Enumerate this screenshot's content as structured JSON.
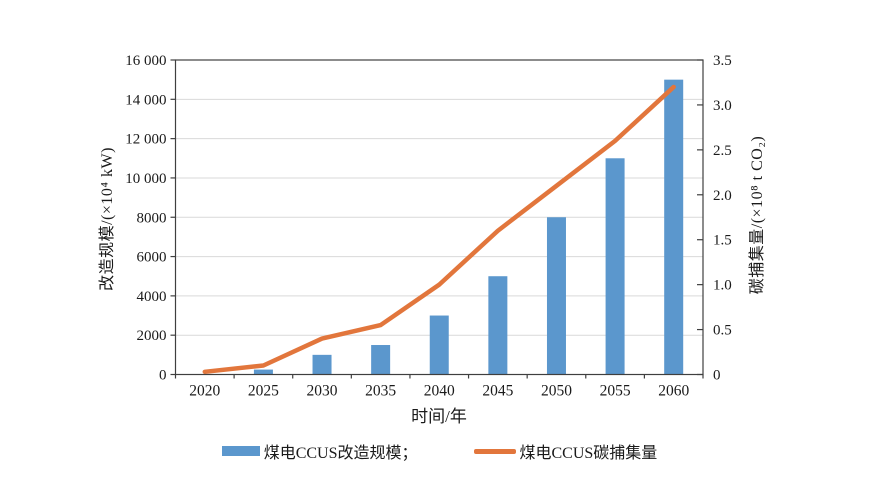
{
  "chart_data": {
    "type": "bar",
    "subtype": "bar-line-combo",
    "categories": [
      "2020",
      "2025",
      "2030",
      "2035",
      "2040",
      "2045",
      "2050",
      "2055",
      "2060"
    ],
    "series": [
      {
        "name": "煤电CCUS改造规模",
        "type": "bar",
        "axis": "left",
        "color": "#5b97cd",
        "values": [
          0,
          250,
          1000,
          1500,
          3000,
          5000,
          8000,
          11000,
          15000
        ]
      },
      {
        "name": "煤电CCUS碳捕集量",
        "type": "line",
        "axis": "right",
        "color": "#e2763c",
        "values": [
          0.03,
          0.1,
          0.4,
          0.55,
          1.0,
          1.6,
          2.1,
          2.6,
          3.2
        ]
      }
    ],
    "left_axis": {
      "label": "改造规模/(×10⁴ kW)",
      "min": 0,
      "max": 16000,
      "step": 2000,
      "tick_labels": [
        "0",
        "2000",
        "4000",
        "6000",
        "8000",
        "10 000",
        "12 000",
        "14 000",
        "16 000"
      ]
    },
    "right_axis": {
      "label": "碳捕集量/(×10⁸ t CO₂)",
      "min": 0,
      "max": 3.5,
      "step": 0.5,
      "tick_labels": [
        "0",
        "0.5",
        "1.0",
        "1.5",
        "2.0",
        "2.5",
        "3.0",
        "3.5"
      ]
    },
    "x_axis": {
      "label": "时间/年"
    },
    "legend": [
      {
        "label": "煤电CCUS改造规模；",
        "swatch": "bar"
      },
      {
        "label": "煤电CCUS碳捕集量",
        "swatch": "line"
      }
    ],
    "grid": true,
    "gridline_color": "#d9d9d9",
    "axis_color": "#3f3f3f",
    "text_color": "#1a1a1a"
  }
}
